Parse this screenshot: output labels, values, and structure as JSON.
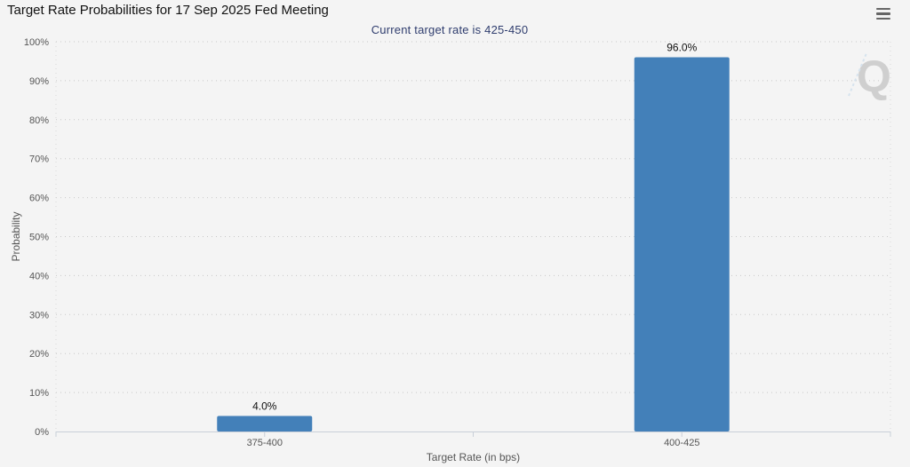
{
  "header": {
    "title": "Target Rate Probabilities for 17 Sep 2025 Fed Meeting",
    "menu_icon": "hamburger-menu-icon"
  },
  "chart_data": {
    "type": "bar",
    "title": "Target Rate Probabilities for 17 Sep 2025 Fed Meeting",
    "subtitle": "Current target rate is 425-450",
    "xlabel": "Target Rate (in bps)",
    "ylabel": "Probability",
    "categories": [
      "375-400",
      "400-425"
    ],
    "values": [
      4.0,
      96.0
    ],
    "data_labels": [
      "4.0%",
      "96.0%"
    ],
    "ylim": [
      0,
      100
    ],
    "yticks": [
      0,
      10,
      20,
      30,
      40,
      50,
      60,
      70,
      80,
      90,
      100
    ],
    "ytick_labels": [
      "0%",
      "10%",
      "20%",
      "30%",
      "40%",
      "50%",
      "60%",
      "70%",
      "80%",
      "90%",
      "100%"
    ],
    "grid": true,
    "bar_color": "#4380b9"
  },
  "watermark": {
    "icon": "q-logo-watermark"
  }
}
